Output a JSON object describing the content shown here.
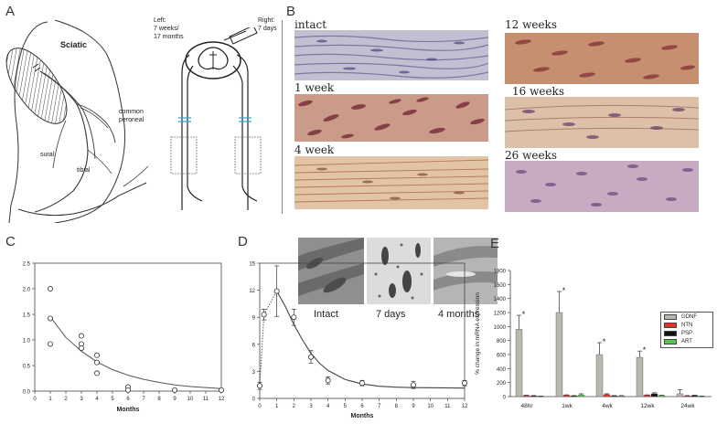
{
  "panels": {
    "A": {
      "letter": "A",
      "labels": {
        "sciatic": "Sciatic",
        "common_peroneal": "common\nperoneal",
        "sural": "sural",
        "tibial": "tibial",
        "left": "Left:\n7 weeks/\n17 months",
        "right": "Right:\n7 days"
      }
    },
    "B": {
      "letter": "B",
      "micrographs": [
        {
          "label": "intact",
          "tone": "#b9b0c9"
        },
        {
          "label": "1 week",
          "tone": "#b07a6e"
        },
        {
          "label": "4 week",
          "tone": "#d8b592"
        },
        {
          "label": "12 weeks",
          "tone": "#b77a5e"
        },
        {
          "label": "16 weeks",
          "tone": "#c69b85"
        },
        {
          "label": "26 weeks",
          "tone": "#b79bb3"
        }
      ]
    },
    "C": {
      "letter": "C",
      "chart_data": {
        "type": "scatter",
        "xlabel": "Months",
        "ylabel": "",
        "xlim": [
          0,
          12
        ],
        "ylim": [
          0,
          2.5
        ],
        "xticks": [
          0,
          1,
          2,
          3,
          4,
          5,
          6,
          7,
          8,
          9,
          10,
          11,
          12
        ],
        "yticks": [
          0.0,
          0.5,
          1.0,
          1.5,
          2.0,
          2.5
        ],
        "points": [
          {
            "x": 1,
            "y": 2.0
          },
          {
            "x": 1,
            "y": 1.42
          },
          {
            "x": 1,
            "y": 0.92
          },
          {
            "x": 3,
            "y": 1.08
          },
          {
            "x": 3,
            "y": 0.92
          },
          {
            "x": 3,
            "y": 0.84
          },
          {
            "x": 4,
            "y": 0.7
          },
          {
            "x": 4,
            "y": 0.56
          },
          {
            "x": 4,
            "y": 0.35
          },
          {
            "x": 6,
            "y": 0.08
          },
          {
            "x": 6,
            "y": 0.02
          },
          {
            "x": 9,
            "y": 0.02
          },
          {
            "x": 12,
            "y": 0.02
          }
        ],
        "fit": [
          [
            1,
            1.45
          ],
          [
            2,
            1.05
          ],
          [
            3,
            0.78
          ],
          [
            4,
            0.57
          ],
          [
            5,
            0.42
          ],
          [
            6,
            0.31
          ],
          [
            7,
            0.23
          ],
          [
            8,
            0.17
          ],
          [
            9,
            0.12
          ],
          [
            10,
            0.09
          ],
          [
            11,
            0.07
          ],
          [
            12,
            0.05
          ]
        ]
      }
    },
    "D": {
      "letter": "D",
      "insets": [
        {
          "label": "Intact"
        },
        {
          "label": "7 days"
        },
        {
          "label": "4 months"
        }
      ],
      "chart_data": {
        "type": "line",
        "xlabel": "Months",
        "ylabel": "",
        "xlim": [
          0,
          12
        ],
        "ylim": [
          0,
          15
        ],
        "xticks": [
          0,
          1,
          2,
          3,
          4,
          5,
          6,
          7,
          8,
          9,
          10,
          11,
          12
        ],
        "yticks": [
          0,
          3,
          6,
          9,
          12,
          15
        ],
        "points": [
          {
            "x": 0,
            "y": 1.4,
            "err": 0.4
          },
          {
            "x": 0.25,
            "y": 9.3,
            "err": 0.6
          },
          {
            "x": 1,
            "y": 11.9,
            "err": 2.8
          },
          {
            "x": 2,
            "y": 9.0,
            "err": 0.9
          },
          {
            "x": 3,
            "y": 4.6,
            "err": 0.7
          },
          {
            "x": 4,
            "y": 2.0,
            "err": 0.4
          },
          {
            "x": 6,
            "y": 1.7,
            "err": 0.3
          },
          {
            "x": 9,
            "y": 1.5,
            "err": 0.4
          },
          {
            "x": 12,
            "y": 1.7,
            "err": 0.3
          }
        ],
        "dotted": [
          [
            0,
            1.4
          ],
          [
            0.25,
            9.3
          ],
          [
            1,
            11.9
          ]
        ],
        "fit": [
          [
            1,
            11.9
          ],
          [
            1.5,
            10.2
          ],
          [
            2,
            8.2
          ],
          [
            2.5,
            6.5
          ],
          [
            3,
            5.0
          ],
          [
            3.5,
            3.9
          ],
          [
            4,
            3.1
          ],
          [
            5,
            2.1
          ],
          [
            6,
            1.6
          ],
          [
            7,
            1.35
          ],
          [
            8,
            1.25
          ],
          [
            9,
            1.2
          ],
          [
            10,
            1.18
          ],
          [
            12,
            1.15
          ]
        ]
      }
    },
    "E": {
      "letter": "E",
      "chart_data": {
        "type": "bar",
        "ylabel": "% change in mRNA expression",
        "ylim": [
          0,
          1800
        ],
        "yticks": [
          0,
          200,
          400,
          600,
          800,
          1000,
          1200,
          1400,
          1600,
          1800
        ],
        "categories": [
          "48hr",
          "1wk",
          "4wk",
          "12wk",
          "24wk"
        ],
        "series": [
          {
            "name": "GDNF",
            "color": "#b8b8ae",
            "values": [
              960,
              1200,
              600,
              560,
              40
            ],
            "errors": [
              200,
              300,
              170,
              90,
              60
            ],
            "significant": [
              true,
              true,
              true,
              true,
              false
            ]
          },
          {
            "name": "NTN",
            "color": "#e8302b",
            "values": [
              15,
              20,
              30,
              20,
              10
            ],
            "errors": [
              5,
              5,
              10,
              5,
              5
            ]
          },
          {
            "name": "PSP",
            "color": "#111111",
            "values": [
              10,
              10,
              10,
              40,
              15
            ],
            "errors": [
              5,
              5,
              5,
              15,
              5
            ]
          },
          {
            "name": "ART",
            "color": "#55c84a",
            "values": [
              5,
              25,
              10,
              15,
              5
            ],
            "errors": [
              3,
              15,
              5,
              5,
              3
            ]
          }
        ],
        "significance_marker": "*"
      }
    }
  }
}
